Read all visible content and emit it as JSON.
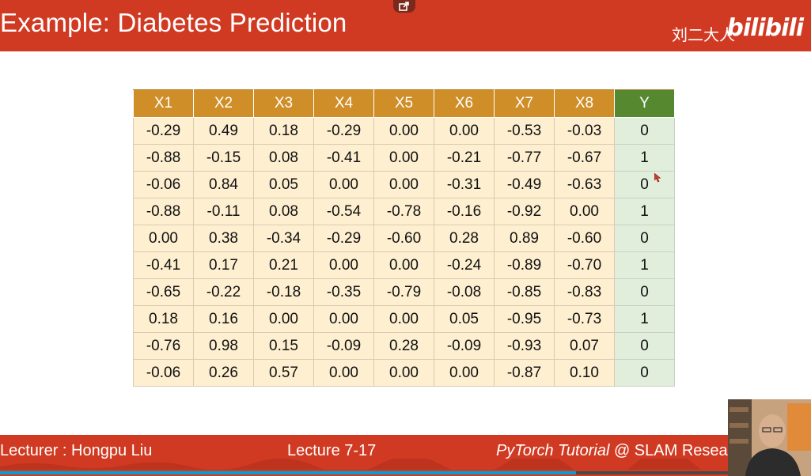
{
  "header": {
    "title": "Example: Diabetes Prediction",
    "author": "刘二大人",
    "logo": "bilibili"
  },
  "table": {
    "columns": [
      "X1",
      "X2",
      "X3",
      "X4",
      "X5",
      "X6",
      "X7",
      "X8",
      "Y"
    ],
    "rows": [
      [
        "-0.29",
        "0.49",
        "0.18",
        "-0.29",
        "0.00",
        "0.00",
        "-0.53",
        "-0.03",
        "0"
      ],
      [
        "-0.88",
        "-0.15",
        "0.08",
        "-0.41",
        "0.00",
        "-0.21",
        "-0.77",
        "-0.67",
        "1"
      ],
      [
        "-0.06",
        "0.84",
        "0.05",
        "0.00",
        "0.00",
        "-0.31",
        "-0.49",
        "-0.63",
        "0"
      ],
      [
        "-0.88",
        "-0.11",
        "0.08",
        "-0.54",
        "-0.78",
        "-0.16",
        "-0.92",
        "0.00",
        "1"
      ],
      [
        "0.00",
        "0.38",
        "-0.34",
        "-0.29",
        "-0.60",
        "0.28",
        "0.89",
        "-0.60",
        "0"
      ],
      [
        "-0.41",
        "0.17",
        "0.21",
        "0.00",
        "0.00",
        "-0.24",
        "-0.89",
        "-0.70",
        "1"
      ],
      [
        "-0.65",
        "-0.22",
        "-0.18",
        "-0.35",
        "-0.79",
        "-0.08",
        "-0.85",
        "-0.83",
        "0"
      ],
      [
        "0.18",
        "0.16",
        "0.00",
        "0.00",
        "0.00",
        "0.05",
        "-0.95",
        "-0.73",
        "1"
      ],
      [
        "-0.76",
        "0.98",
        "0.15",
        "-0.09",
        "0.28",
        "-0.09",
        "-0.93",
        "0.07",
        "0"
      ],
      [
        "-0.06",
        "0.26",
        "0.57",
        "0.00",
        "0.00",
        "0.00",
        "-0.87",
        "0.10",
        "0"
      ]
    ]
  },
  "footer": {
    "lecturer": "Lecturer : Hongpu Liu",
    "lecture": "Lecture 7-17",
    "tutorial_italic": "PyTorch Tutorial",
    "tutorial_rest": " @ SLAM Resea"
  },
  "player": {
    "progress_fraction": 0.71
  },
  "colors": {
    "header_bg": "#d13a22",
    "feature_header": "#d08e28",
    "label_header": "#55882f",
    "feature_cell": "#fdefd0",
    "label_cell": "#e0eedb"
  },
  "icons": {
    "popout": "popout-icon",
    "cursor": "mouse-cursor-icon",
    "webcam": "presenter-webcam"
  }
}
